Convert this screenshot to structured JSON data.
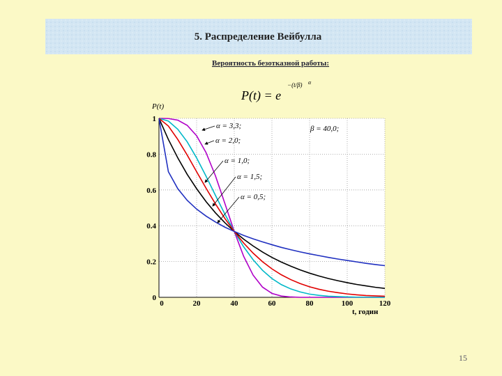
{
  "header": {
    "title": "5. Распределение Вейбулла"
  },
  "subtitle": "Вероятность безотказной работы:",
  "formula": {
    "lhs": "P(t) = e",
    "exponent": "−(t/β)",
    "power": "α"
  },
  "page_number": "15",
  "chart_data": {
    "type": "line",
    "y_label": "P(t)",
    "x_label": "t, годин",
    "annotation": "β = 40,0;",
    "x": [
      0,
      5,
      10,
      15,
      20,
      25,
      30,
      35,
      40,
      45,
      50,
      55,
      60,
      65,
      70,
      75,
      80,
      85,
      90,
      95,
      100,
      105,
      110,
      115,
      120
    ],
    "xlim": [
      0,
      120
    ],
    "xticks": [
      0,
      20,
      40,
      60,
      80,
      100,
      120
    ],
    "ylim": [
      0,
      1
    ],
    "yticks": [
      0,
      0.2,
      0.4,
      0.6,
      0.8,
      1
    ],
    "grid": true,
    "series": [
      {
        "name": "α = 3,3;",
        "color": "#b000c8",
        "values": [
          1,
          0.999,
          0.99,
          0.961,
          0.903,
          0.809,
          0.679,
          0.525,
          0.368,
          0.229,
          0.124,
          0.057,
          0.022,
          0.007,
          0.002,
          0,
          0,
          0,
          0,
          0,
          0,
          0,
          0,
          0,
          0
        ]
      },
      {
        "name": "α = 2,0;",
        "color": "#00b8c8",
        "values": [
          1,
          0.985,
          0.939,
          0.869,
          0.779,
          0.677,
          0.57,
          0.465,
          0.368,
          0.282,
          0.21,
          0.151,
          0.105,
          0.071,
          0.047,
          0.03,
          0.018,
          0.011,
          0.006,
          0.004,
          0.002,
          0.001,
          0.001,
          0,
          0
        ]
      },
      {
        "name": "α = 1,0;",
        "color": "#000000",
        "values": [
          1,
          0.882,
          0.779,
          0.687,
          0.607,
          0.535,
          0.472,
          0.417,
          0.368,
          0.325,
          0.287,
          0.253,
          0.223,
          0.197,
          0.174,
          0.153,
          0.135,
          0.119,
          0.105,
          0.093,
          0.082,
          0.072,
          0.064,
          0.056,
          0.05
        ]
      },
      {
        "name": "α = 1,5;",
        "color": "#e00000",
        "values": [
          1,
          0.957,
          0.882,
          0.795,
          0.702,
          0.61,
          0.522,
          0.441,
          0.368,
          0.303,
          0.247,
          0.199,
          0.159,
          0.126,
          0.099,
          0.077,
          0.059,
          0.045,
          0.034,
          0.026,
          0.019,
          0.014,
          0.01,
          0.008,
          0.006
        ]
      },
      {
        "name": "α = 0,5;",
        "color": "#2030c0",
        "values": [
          1,
          0.702,
          0.607,
          0.542,
          0.493,
          0.454,
          0.421,
          0.392,
          0.368,
          0.346,
          0.327,
          0.31,
          0.294,
          0.279,
          0.266,
          0.254,
          0.243,
          0.233,
          0.223,
          0.214,
          0.206,
          0.198,
          0.19,
          0.183,
          0.177
        ]
      }
    ]
  }
}
